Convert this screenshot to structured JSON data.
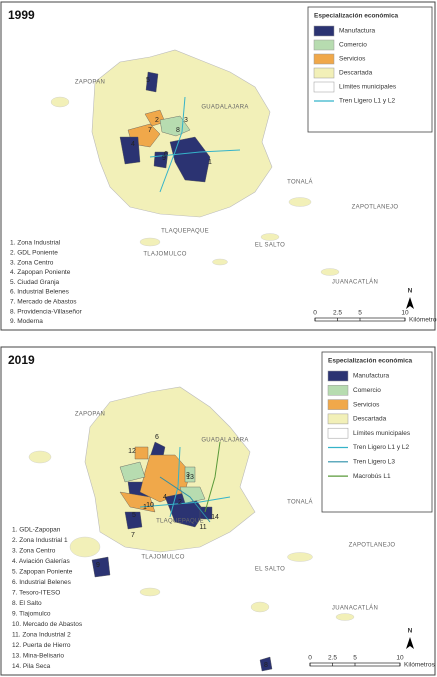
{
  "maps": [
    {
      "year": "1999",
      "legend": {
        "title": "Especialización económica",
        "items": [
          {
            "label": "Manufactura",
            "color": "#2b3372",
            "symbol": "fill"
          },
          {
            "label": "Comercio",
            "color": "#b7dcb0",
            "symbol": "fill"
          },
          {
            "label": "Servicios",
            "color": "#f0a84a",
            "symbol": "fill"
          },
          {
            "label": "Descartada",
            "color": "#f2f0b8",
            "symbol": "fill"
          },
          {
            "label": "Límites municipales",
            "color": "#ffffff",
            "symbol": "fill"
          },
          {
            "label": "Tren Ligero L1 y L2",
            "color": "#35b3c9",
            "symbol": "line"
          }
        ]
      },
      "municipalities": [
        "ZAPOPAN",
        "GUADALAJARA",
        "TONALÁ",
        "TLAQUEPAQUE",
        "ZAPOTLANEJO",
        "TLAJOMULCO",
        "EL SALTO",
        "JUANACATLÁN"
      ],
      "zone_numbers": [
        "1",
        "2",
        "3",
        "4",
        "5",
        "6",
        "7",
        "8",
        "9"
      ],
      "zones": [
        "1. Zona Industrial",
        "2. GDL Poniente",
        "3. Zona Centro",
        "4. Zapopan Poniente",
        "5. Ciudad Granja",
        "6. Industrial Belenes",
        "7. Mercado de Abastos",
        "8. Providencia-Villaseñor",
        "9. Moderna"
      ],
      "scale": {
        "ticks": [
          0,
          2.5,
          5,
          10
        ],
        "unit": "Kilómetros"
      },
      "north": "N"
    },
    {
      "year": "2019",
      "legend": {
        "title": "Especialización económica",
        "items": [
          {
            "label": "Manufactura",
            "color": "#2b3372",
            "symbol": "fill"
          },
          {
            "label": "Comercio",
            "color": "#b7dcb0",
            "symbol": "fill"
          },
          {
            "label": "Servicios",
            "color": "#f0a84a",
            "symbol": "fill"
          },
          {
            "label": "Descartada",
            "color": "#f2f0b8",
            "symbol": "fill"
          },
          {
            "label": "Límites municipales",
            "color": "#ffffff",
            "symbol": "fill"
          },
          {
            "label": "Tren Ligero L1 y L2",
            "color": "#35b3c9",
            "symbol": "line"
          },
          {
            "label": "Tren Ligero L3",
            "color": "#2c8fa8",
            "symbol": "line"
          },
          {
            "label": "Macrobús L1",
            "color": "#5a9a3a",
            "symbol": "line"
          }
        ]
      },
      "municipalities": [
        "ZAPOPAN",
        "GUADALAJARA",
        "TONALÁ",
        "TLAQUEPAQUE",
        "ZAPOTLANEJO",
        "TLAJOMULCO",
        "EL SALTO",
        "JUANACATLÁN"
      ],
      "zone_numbers": [
        "1",
        "2",
        "3",
        "4",
        "5",
        "6",
        "7",
        "8",
        "9",
        "10",
        "11",
        "12",
        "13",
        "14"
      ],
      "zones": [
        "1. GDL-Zapopan",
        "2. Zona Industrial 1",
        "3. Zona Centro",
        "4. Aviación Galerías",
        "5. Zapopan Poniente",
        "6. Industrial Belenes",
        "7. Tesoro-ITESO",
        "8. El Salto",
        "9. Tlajomulco",
        "10. Mercado de Abastos",
        "11. Zona Industrial 2",
        "12. Puerta de Hierro",
        "13. Mina-Belisario",
        "14. Pila Seca"
      ],
      "scale": {
        "ticks": [
          0,
          2.5,
          5,
          10
        ],
        "unit": "Kilómetros"
      },
      "north": "N"
    }
  ]
}
